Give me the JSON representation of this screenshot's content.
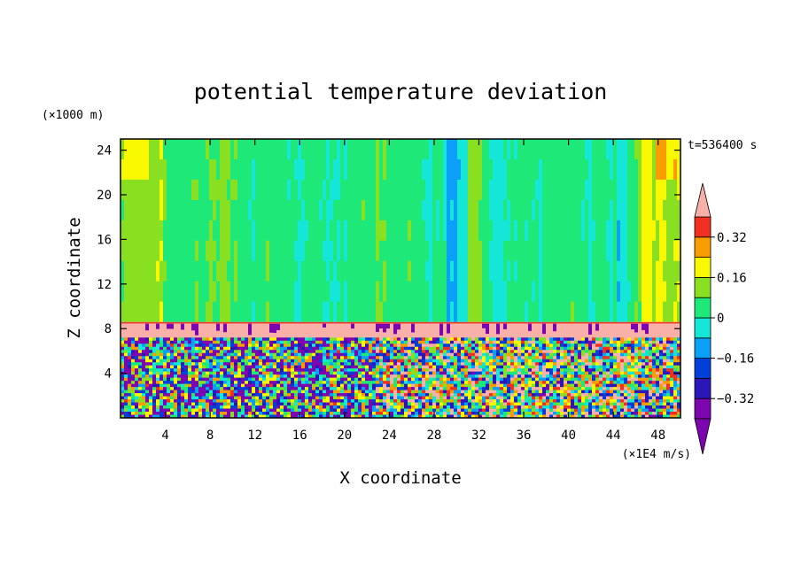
{
  "chart_data": {
    "type": "heatmap",
    "title": "potential temperature deviation",
    "xlabel": "X coordinate",
    "ylabel": "Z coordinate",
    "x_unit": "(×1E4 m/s)",
    "y_unit": "(×1000 m)",
    "time_label": "t=536400 s",
    "xlim": [
      0,
      50
    ],
    "ylim": [
      0,
      25
    ],
    "x_ticks": [
      4,
      8,
      12,
      16,
      20,
      24,
      28,
      32,
      36,
      40,
      44,
      48
    ],
    "y_ticks": [
      4,
      8,
      12,
      16,
      20,
      24
    ],
    "colorbar": {
      "levels": [
        -0.4,
        -0.32,
        -0.24,
        -0.16,
        -0.08,
        0,
        0.08,
        0.16,
        0.24,
        0.32,
        0.4
      ],
      "tick_labels": [
        "0.32",
        "0.16",
        "0",
        "−0.16",
        "−0.32"
      ],
      "tick_values": [
        0.32,
        0.16,
        0,
        -0.16,
        -0.32
      ],
      "colors": [
        "#7d05b0",
        "#2b16b8",
        "#0040d8",
        "#0aa0f8",
        "#14e6d8",
        "#1ee878",
        "#88e020",
        "#f8f800",
        "#f89c00",
        "#f03020",
        "#f8b0a8"
      ],
      "extend": "both"
    },
    "layers": [
      {
        "z_range": [
          8.6,
          25
        ],
        "description": "upper layer",
        "dominant": "#1ee878"
      },
      {
        "z_range": [
          7.2,
          8.6
        ],
        "description": "inversion layer",
        "dominant": "#f8b0a8"
      },
      {
        "z_range": [
          0,
          7.2
        ],
        "description": "turbulent layer",
        "dominant": "mixed"
      }
    ]
  }
}
